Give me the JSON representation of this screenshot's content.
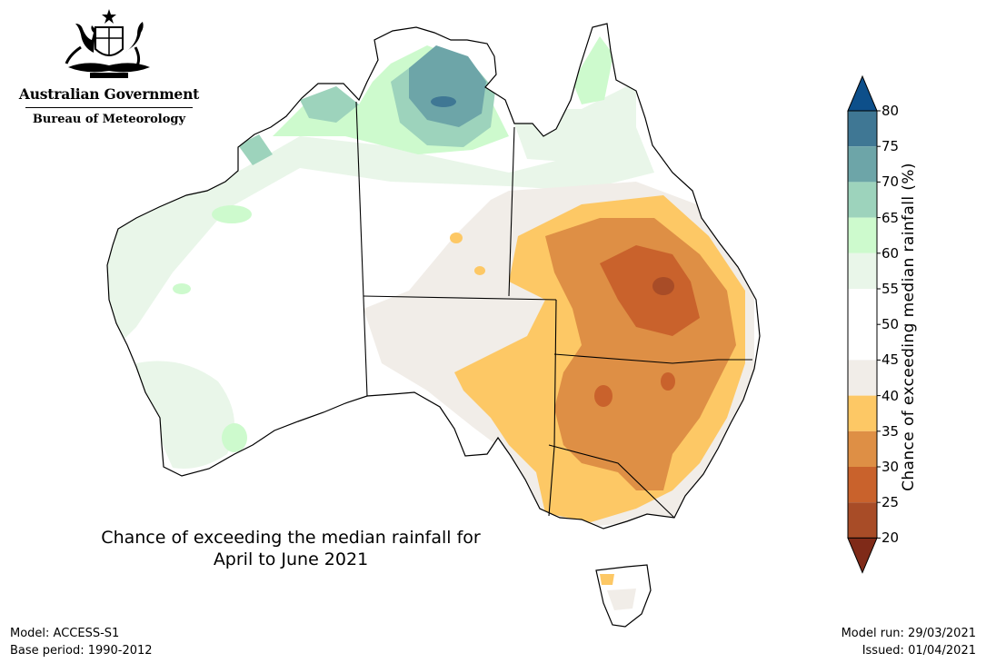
{
  "header": {
    "government": "Australian Government",
    "bureau": "Bureau of Meteorology"
  },
  "map": {
    "title_line1": "Chance of exceeding the median rainfall for",
    "title_line2": "April to June 2021"
  },
  "footer": {
    "model": "Model: ACCESS-S1",
    "base_period": "Base period: 1990-2012",
    "model_run": "Model run: 29/03/2021",
    "issued": "Issued: 01/04/2021"
  },
  "legend": {
    "title": "Chance of exceeding median rainfall (%)",
    "ticks": [
      "80",
      "75",
      "70",
      "65",
      "60",
      "55",
      "50",
      "45",
      "40",
      "35",
      "30",
      "25",
      "20"
    ],
    "colors": {
      "above_80": "#0d4f8a",
      "75_80": "#3f7794",
      "70_75": "#6da5a8",
      "65_70": "#9dd3bc",
      "60_65": "#cdfacd",
      "55_60": "#e9f6e9",
      "50_55": "#ffffff",
      "45_50": "#ffffff",
      "40_45": "#f1ede8",
      "35_40": "#fdc865",
      "30_35": "#de8f45",
      "25_30": "#c9622c",
      "20_25": "#a84c27",
      "below_20": "#7f2a18"
    }
  }
}
